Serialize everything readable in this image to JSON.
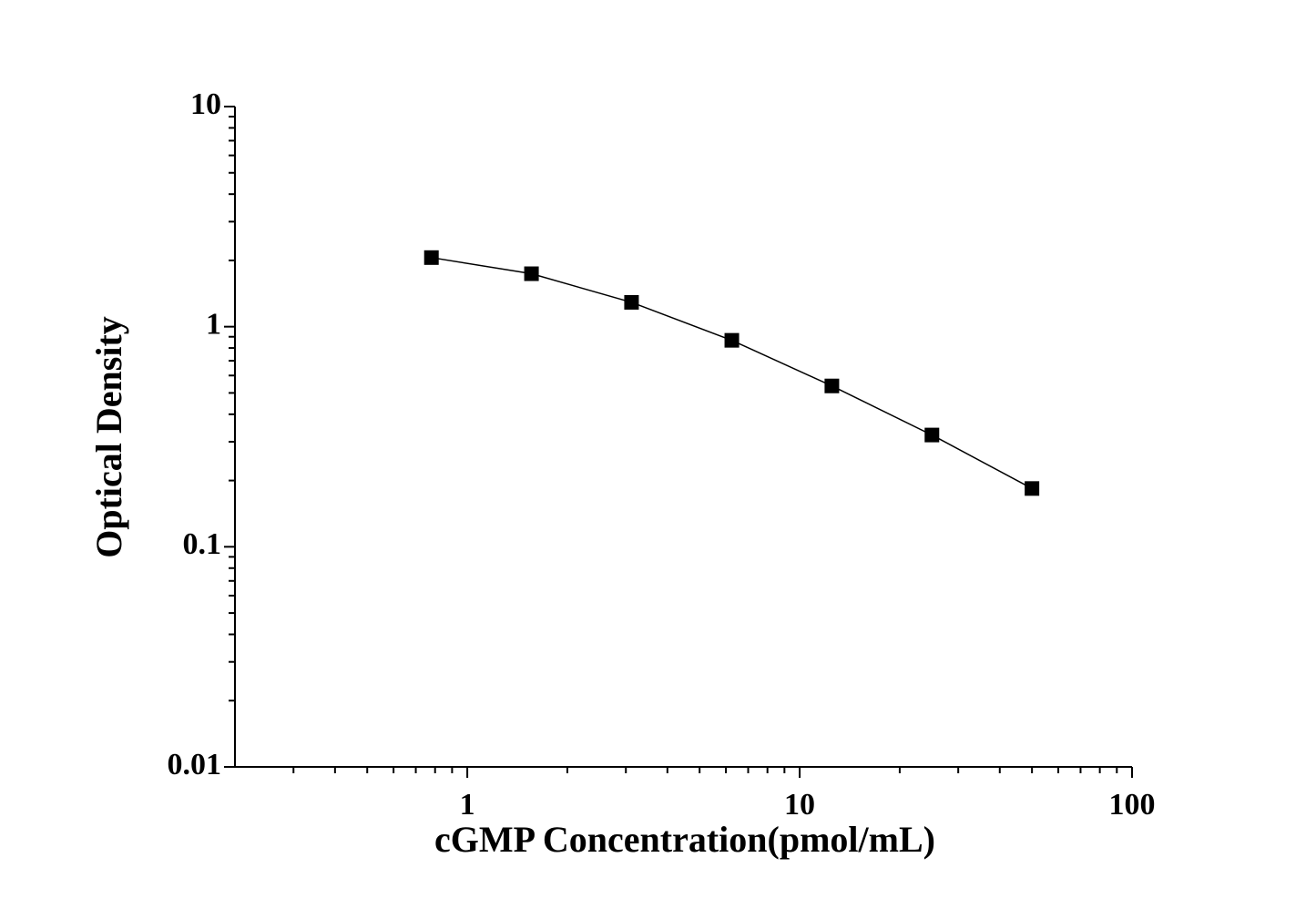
{
  "chart_data": {
    "type": "scatter-line",
    "x_label": "cGMP Concentration(pmol/mL)",
    "y_label": "Optical Density",
    "x": [
      0.78,
      1.56,
      3.12,
      6.25,
      12.5,
      25,
      50
    ],
    "values": [
      2.06,
      1.74,
      1.29,
      0.867,
      0.538,
      0.322,
      0.184
    ],
    "color": "#000000",
    "xlog": true,
    "ylog": true,
    "xlim": [
      0.2,
      100
    ],
    "ylim": [
      0.01,
      10
    ],
    "xticks": [
      1,
      10,
      100
    ],
    "yticks": [
      10,
      1,
      0.1,
      0.01
    ],
    "xminorticks": [
      0.3,
      0.4,
      0.5,
      0.6,
      0.7,
      0.8,
      0.9,
      2,
      3,
      4,
      5,
      6,
      7,
      8,
      9,
      20,
      30,
      40,
      50,
      60,
      70,
      80,
      90
    ],
    "yminorticks": [
      0.02,
      0.03,
      0.04,
      0.05,
      0.06,
      0.07,
      0.08,
      0.09,
      0.2,
      0.3,
      0.4,
      0.5,
      0.6,
      0.7,
      0.8,
      0.9,
      2,
      3,
      4,
      5,
      6,
      7,
      8,
      9
    ]
  }
}
